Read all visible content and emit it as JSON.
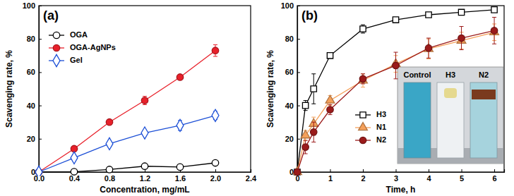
{
  "chart_data": [
    {
      "type": "line",
      "title": "(a)",
      "x_label": "Concentration, mg/mL",
      "y_label": "Scavenging rate, %",
      "x": [
        0,
        0.4,
        0.8,
        1.2,
        1.6,
        2.0
      ],
      "xlim": [
        0,
        2.4
      ],
      "xticks": [
        {
          "value": 0,
          "label": "0.0"
        },
        0.4,
        0.8,
        1.2,
        1.6,
        {
          "value": 2,
          "label": "2.0"
        },
        2.4
      ],
      "ylim": [
        0,
        100
      ],
      "yticks": [
        0,
        20,
        40,
        60,
        80,
        100
      ],
      "grid": false,
      "legend": "upper left",
      "series": [
        {
          "name": "OGA",
          "color": "#000000",
          "marker": "open-circle",
          "line_style": "solid",
          "values": [
            0,
            0.2,
            1.5,
            3.5,
            3,
            5.5
          ],
          "errors": [
            0,
            0,
            1,
            1,
            1.5,
            1
          ]
        },
        {
          "name": "OGA-AgNPs",
          "color": "#e8202a",
          "marker": "circle",
          "line_style": "solid",
          "values": [
            0,
            14,
            30,
            43,
            57,
            73
          ],
          "errors": [
            0,
            1,
            1.5,
            2.5,
            1.5,
            3.5
          ]
        },
        {
          "name": "Gel",
          "color": "#1c4fd6",
          "marker": "open-diamond",
          "line_style": "solid",
          "values": [
            0,
            8.5,
            17,
            23.5,
            28,
            34
          ],
          "errors": [
            0,
            1,
            1,
            1,
            3,
            2.5
          ]
        }
      ]
    },
    {
      "type": "line",
      "title": "(b)",
      "x_label": "Time, h",
      "y_label": "Scavenging rate, %",
      "x": [
        0,
        0.25,
        0.5,
        1,
        2,
        3,
        4,
        5,
        6
      ],
      "xlim": [
        0,
        6.3
      ],
      "xticks": [
        0,
        1,
        2,
        3,
        4,
        5,
        6
      ],
      "ylim": [
        0,
        100
      ],
      "yticks": [
        0,
        20,
        40,
        60,
        80,
        100
      ],
      "grid": false,
      "legend": "lower center",
      "annotations": [
        "Control",
        "H3",
        "N2"
      ],
      "series": [
        {
          "name": "H3",
          "color": "#000000",
          "marker": "open-square",
          "line_style": "solid",
          "values": [
            0,
            40,
            50,
            70,
            86,
            91.5,
            94.5,
            96,
            97.5
          ],
          "errors": [
            0,
            3,
            9,
            1,
            2.5,
            1.5,
            1.5,
            1,
            1.5
          ]
        },
        {
          "name": "N1",
          "color": "#f5a05a",
          "marker": "triangle",
          "line_style": "solid",
          "values": [
            0,
            22,
            29,
            43,
            55,
            65,
            74,
            79,
            84
          ],
          "errors": [
            0,
            3,
            4,
            3,
            4,
            5,
            6,
            5,
            5
          ]
        },
        {
          "name": "N2",
          "color": "#9b1b1b",
          "marker": "circle",
          "line_style": "solid",
          "values": [
            0,
            15,
            24,
            37.5,
            56,
            64,
            74.5,
            80.5,
            85
          ],
          "errors": [
            0,
            4,
            6,
            3,
            3,
            8,
            6,
            7,
            8
          ]
        }
      ]
    }
  ]
}
